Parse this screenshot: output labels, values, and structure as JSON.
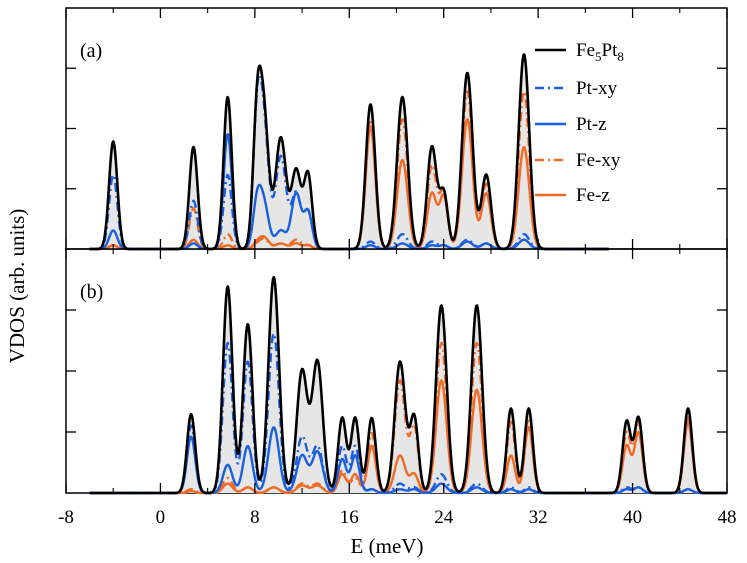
{
  "chart_data": {
    "type": "line",
    "xlabel": "E (meV)",
    "ylabel": "VDOS (arb. units)",
    "xlim": [
      -8,
      48
    ],
    "xticks": [
      "-8",
      "0",
      "8",
      "16",
      "24",
      "32",
      "40",
      "48"
    ],
    "grid": false,
    "legend_position": "top-right (panel a)",
    "colors": {
      "total": "#000000",
      "pt": "#1a5fe0",
      "fe": "#f26b24",
      "fill": "#e6e6e6"
    },
    "legend": [
      {
        "key": "fe5pt8",
        "label_main_1": "Fe",
        "label_sub_1": "5",
        "label_main_2": "Pt",
        "label_sub_2": "8",
        "style": "solid",
        "color": "#000000"
      },
      {
        "key": "ptxy",
        "label": "Pt-xy",
        "style": "dashdot",
        "color": "#1a5fe0"
      },
      {
        "key": "ptz",
        "label": "Pt-z",
        "style": "solid",
        "color": "#1a5fe0"
      },
      {
        "key": "fexy",
        "label": "Fe-xy",
        "style": "dashdot",
        "color": "#f26b24"
      },
      {
        "key": "fez",
        "label": "Fe-z",
        "style": "solid",
        "color": "#f26b24"
      }
    ],
    "panels": [
      {
        "label": "(a)",
        "ylim": [
          0,
          1.3
        ],
        "x_end": 38,
        "peaks": [
          {
            "x": -4.0,
            "w": 0.35,
            "total": 0.58,
            "ptxy": 0.4,
            "ptz": 0.1,
            "fexy": 0.02,
            "fez": 0.02
          },
          {
            "x": 2.8,
            "w": 0.35,
            "total": 0.55,
            "ptxy": 0.26,
            "ptz": 0.03,
            "fexy": 0.22,
            "fez": 0.05
          },
          {
            "x": 5.7,
            "w": 0.35,
            "total": 0.82,
            "ptxy": 0.4,
            "ptz": 0.62,
            "fexy": 0.08,
            "fez": 0.02
          },
          {
            "x": 8.2,
            "w": 0.35,
            "total": 0.7,
            "ptxy": 0.68,
            "ptz": 0.25,
            "fexy": 0.02,
            "fez": 0.03
          },
          {
            "x": 8.8,
            "w": 0.4,
            "total": 0.65,
            "ptxy": 0.6,
            "ptz": 0.22,
            "fexy": 0.05,
            "fez": 0.06
          },
          {
            "x": 10.2,
            "w": 0.45,
            "total": 0.6,
            "ptxy": 0.5,
            "ptz": 0.1,
            "fexy": 0.03,
            "fez": 0.03
          },
          {
            "x": 11.5,
            "w": 0.4,
            "total": 0.42,
            "ptxy": 0.3,
            "ptz": 0.3,
            "fexy": 0.05,
            "fez": 0.03
          },
          {
            "x": 12.5,
            "w": 0.35,
            "total": 0.4,
            "ptxy": 0.2,
            "ptz": 0.2,
            "fexy": 0.02,
            "fez": 0.02
          },
          {
            "x": 17.8,
            "w": 0.4,
            "total": 0.78,
            "ptxy": 0.04,
            "ptz": 0.02,
            "fexy": 0.7,
            "fez": 0.66
          },
          {
            "x": 20.5,
            "w": 0.45,
            "total": 0.82,
            "ptxy": 0.08,
            "ptz": 0.03,
            "fexy": 0.7,
            "fez": 0.48
          },
          {
            "x": 23.0,
            "w": 0.4,
            "total": 0.55,
            "ptxy": 0.04,
            "ptz": 0.02,
            "fexy": 0.45,
            "fez": 0.3
          },
          {
            "x": 24.0,
            "w": 0.35,
            "total": 0.3,
            "ptxy": 0.02,
            "ptz": 0.02,
            "fexy": 0.3,
            "fez": 0.28
          },
          {
            "x": 26.0,
            "w": 0.45,
            "total": 0.95,
            "ptxy": 0.05,
            "ptz": 0.04,
            "fexy": 0.85,
            "fez": 0.7
          },
          {
            "x": 27.6,
            "w": 0.4,
            "total": 0.4,
            "ptxy": 0.03,
            "ptz": 0.03,
            "fexy": 0.35,
            "fez": 0.3
          },
          {
            "x": 30.8,
            "w": 0.45,
            "total": 1.05,
            "ptxy": 0.08,
            "ptz": 0.05,
            "fexy": 0.85,
            "fez": 0.55
          }
        ]
      },
      {
        "label": "(b)",
        "ylim": [
          0,
          1.3
        ],
        "x_end": 48,
        "peaks": [
          {
            "x": 2.6,
            "w": 0.35,
            "total": 0.42,
            "ptxy": 0.36,
            "ptz": 0.3,
            "fexy": 0.02,
            "fez": 0.01
          },
          {
            "x": 5.7,
            "w": 0.4,
            "total": 1.1,
            "ptxy": 0.8,
            "ptz": 0.15,
            "fexy": 0.08,
            "fez": 0.05
          },
          {
            "x": 7.4,
            "w": 0.4,
            "total": 0.9,
            "ptxy": 0.7,
            "ptz": 0.25,
            "fexy": 0.03,
            "fez": 0.03
          },
          {
            "x": 9.6,
            "w": 0.45,
            "total": 1.15,
            "ptxy": 0.85,
            "ptz": 0.35,
            "fexy": 0.03,
            "fez": 0.03
          },
          {
            "x": 12.0,
            "w": 0.45,
            "total": 0.65,
            "ptxy": 0.3,
            "ptz": 0.2,
            "fexy": 0.05,
            "fez": 0.04
          },
          {
            "x": 13.3,
            "w": 0.45,
            "total": 0.7,
            "ptxy": 0.25,
            "ptz": 0.22,
            "fexy": 0.05,
            "fez": 0.04
          },
          {
            "x": 15.4,
            "w": 0.35,
            "total": 0.4,
            "ptxy": 0.25,
            "ptz": 0.18,
            "fexy": 0.12,
            "fez": 0.1
          },
          {
            "x": 16.5,
            "w": 0.35,
            "total": 0.4,
            "ptxy": 0.25,
            "ptz": 0.2,
            "fexy": 0.08,
            "fez": 0.1
          },
          {
            "x": 17.9,
            "w": 0.35,
            "total": 0.4,
            "ptxy": 0.02,
            "ptz": 0.02,
            "fexy": 0.32,
            "fez": 0.25
          },
          {
            "x": 20.3,
            "w": 0.45,
            "total": 0.7,
            "ptxy": 0.05,
            "ptz": 0.02,
            "fexy": 0.6,
            "fez": 0.2
          },
          {
            "x": 21.5,
            "w": 0.35,
            "total": 0.4,
            "ptxy": 0.03,
            "ptz": 0.02,
            "fexy": 0.35,
            "fez": 0.1
          },
          {
            "x": 23.8,
            "w": 0.45,
            "total": 1.0,
            "ptxy": 0.1,
            "ptz": 0.05,
            "fexy": 0.8,
            "fez": 0.6
          },
          {
            "x": 26.8,
            "w": 0.45,
            "total": 1.0,
            "ptxy": 0.05,
            "ptz": 0.03,
            "fexy": 0.8,
            "fez": 0.55
          },
          {
            "x": 29.7,
            "w": 0.35,
            "total": 0.45,
            "ptxy": 0.03,
            "ptz": 0.02,
            "fexy": 0.38,
            "fez": 0.2
          },
          {
            "x": 31.2,
            "w": 0.35,
            "total": 0.45,
            "ptxy": 0.03,
            "ptz": 0.02,
            "fexy": 0.4,
            "fez": 0.35
          },
          {
            "x": 39.5,
            "w": 0.35,
            "total": 0.38,
            "ptxy": 0.03,
            "ptz": 0.02,
            "fexy": 0.32,
            "fez": 0.25
          },
          {
            "x": 40.5,
            "w": 0.35,
            "total": 0.4,
            "ptxy": 0.03,
            "ptz": 0.03,
            "fexy": 0.38,
            "fez": 0.32
          },
          {
            "x": 44.7,
            "w": 0.35,
            "total": 0.45,
            "ptxy": 0.02,
            "ptz": 0.02,
            "fexy": 0.4,
            "fez": 0.38
          }
        ]
      }
    ]
  }
}
